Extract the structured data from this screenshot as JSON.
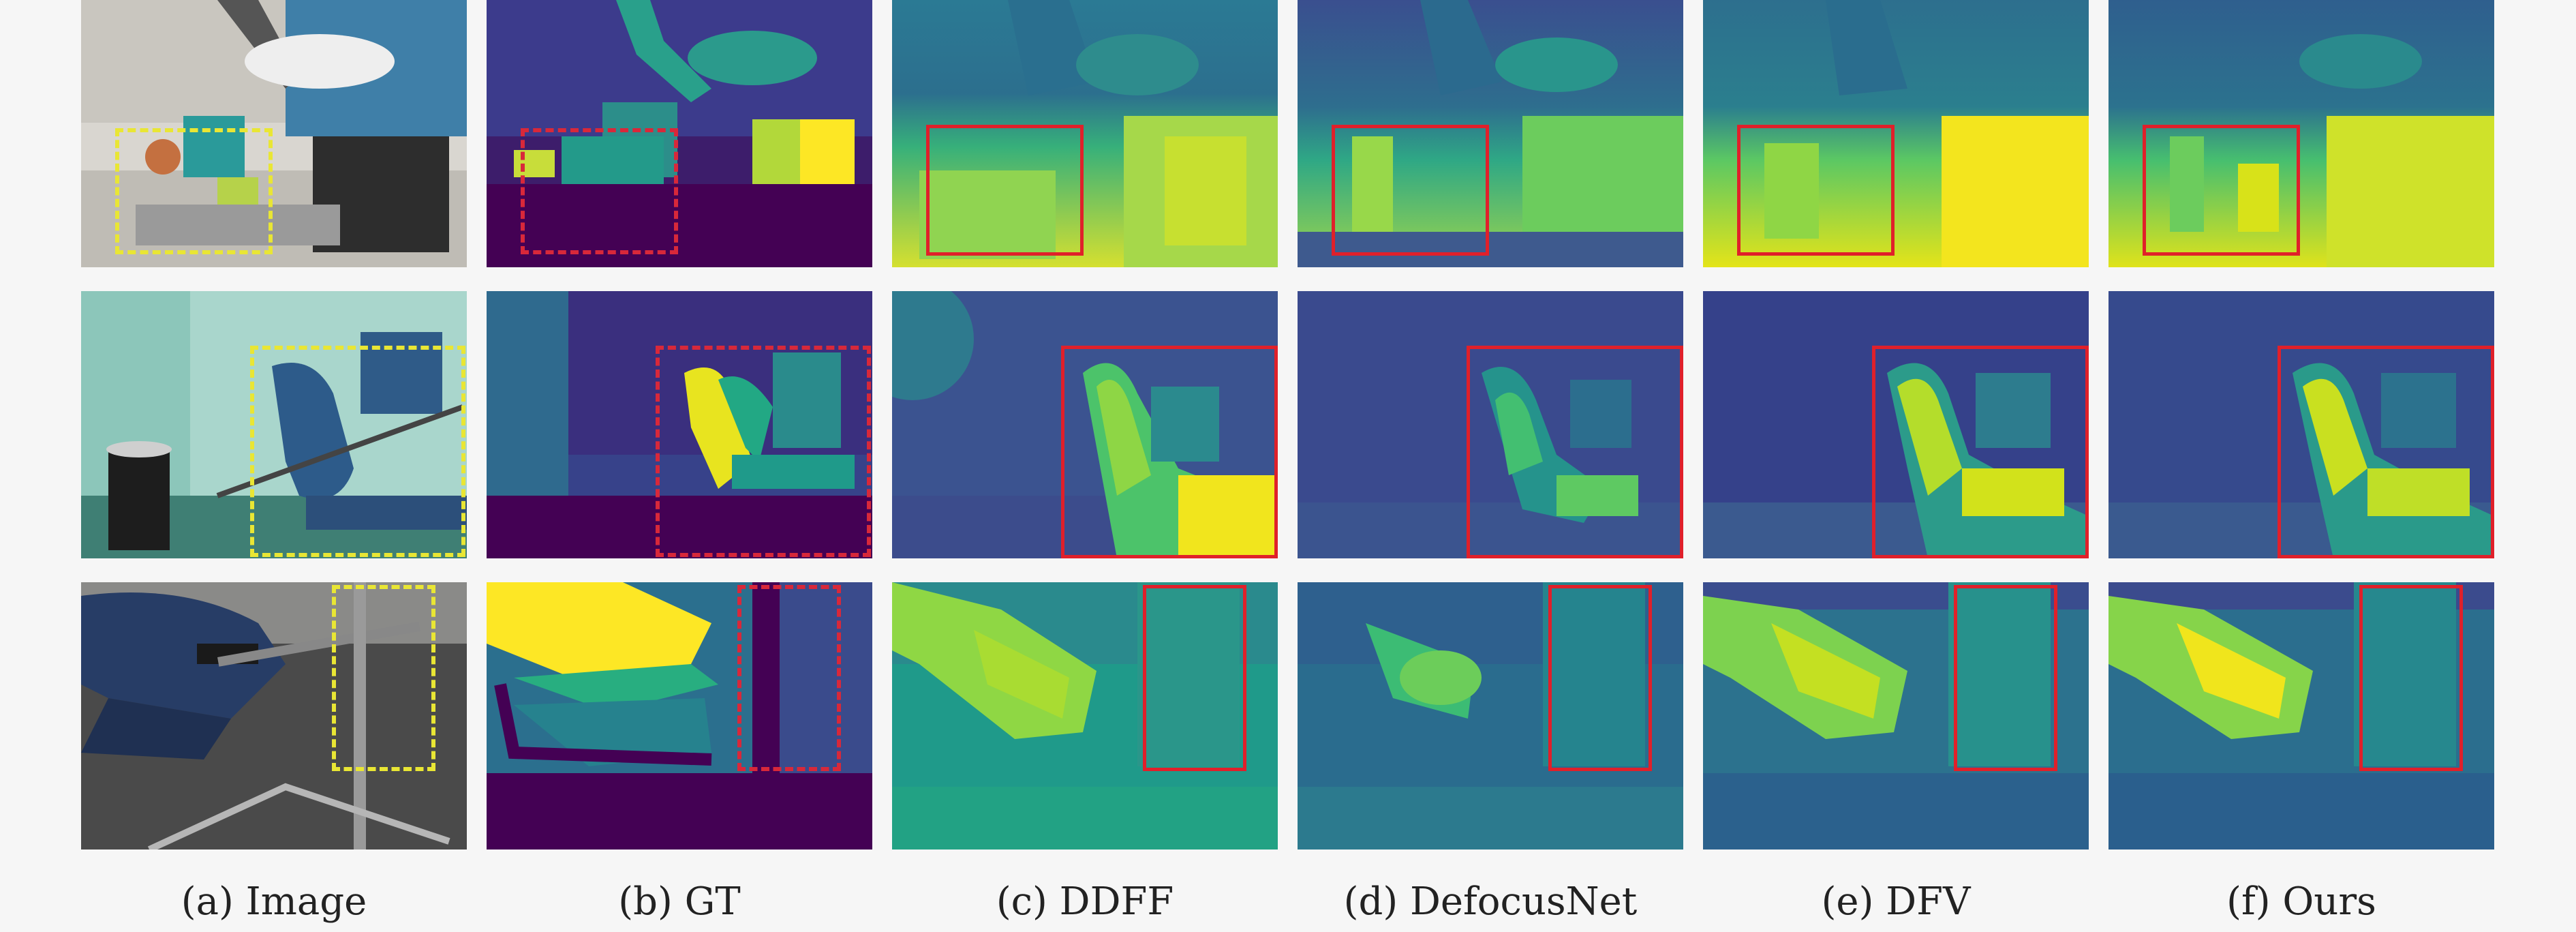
{
  "figure": {
    "captions": [
      "(a) Image",
      "(b) GT",
      "(c) DDFF",
      "(d) DefocusNet",
      "(e) DFV",
      "(f) Ours"
    ]
  },
  "rows": [
    {
      "scene": "desk-toys-lytro"
    },
    {
      "scene": "office-chair-bin"
    },
    {
      "scene": "chair-legs-floor"
    }
  ],
  "colors": {
    "highlight_box": "#e0202a",
    "image_box": "#e9e634",
    "depth_dark": "#440154",
    "depth_mid": "#21908d",
    "depth_bright": "#fde725"
  }
}
